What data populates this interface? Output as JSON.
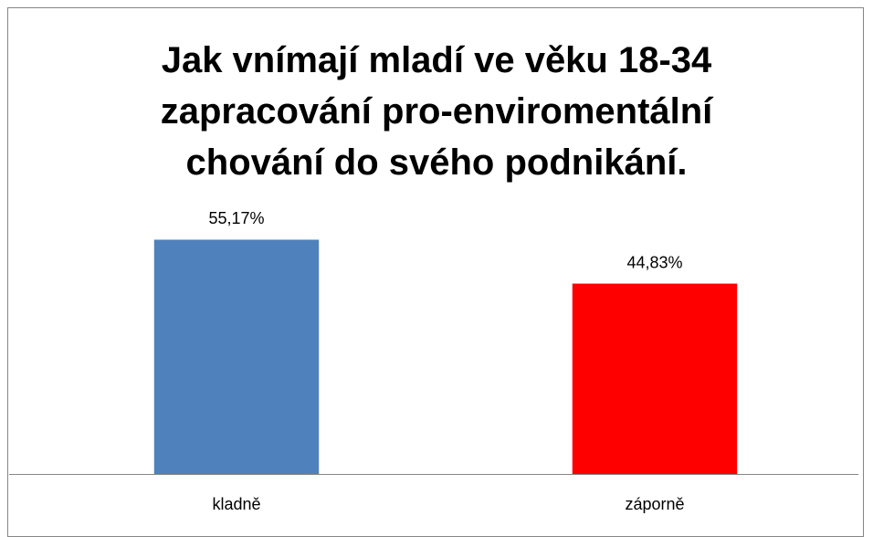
{
  "chart_data": {
    "type": "bar",
    "title": "Jak vnímají mladí ve věku 18-34 zapracování pro-enviromentální chování do svého podnikání.",
    "categories": [
      "kladně",
      "záporně"
    ],
    "values": [
      55.17,
      44.83
    ],
    "value_labels": [
      "55,17%",
      "44,83%"
    ],
    "colors": [
      "#4f81bd",
      "#ff0000"
    ],
    "ylim": [
      0,
      60
    ]
  }
}
